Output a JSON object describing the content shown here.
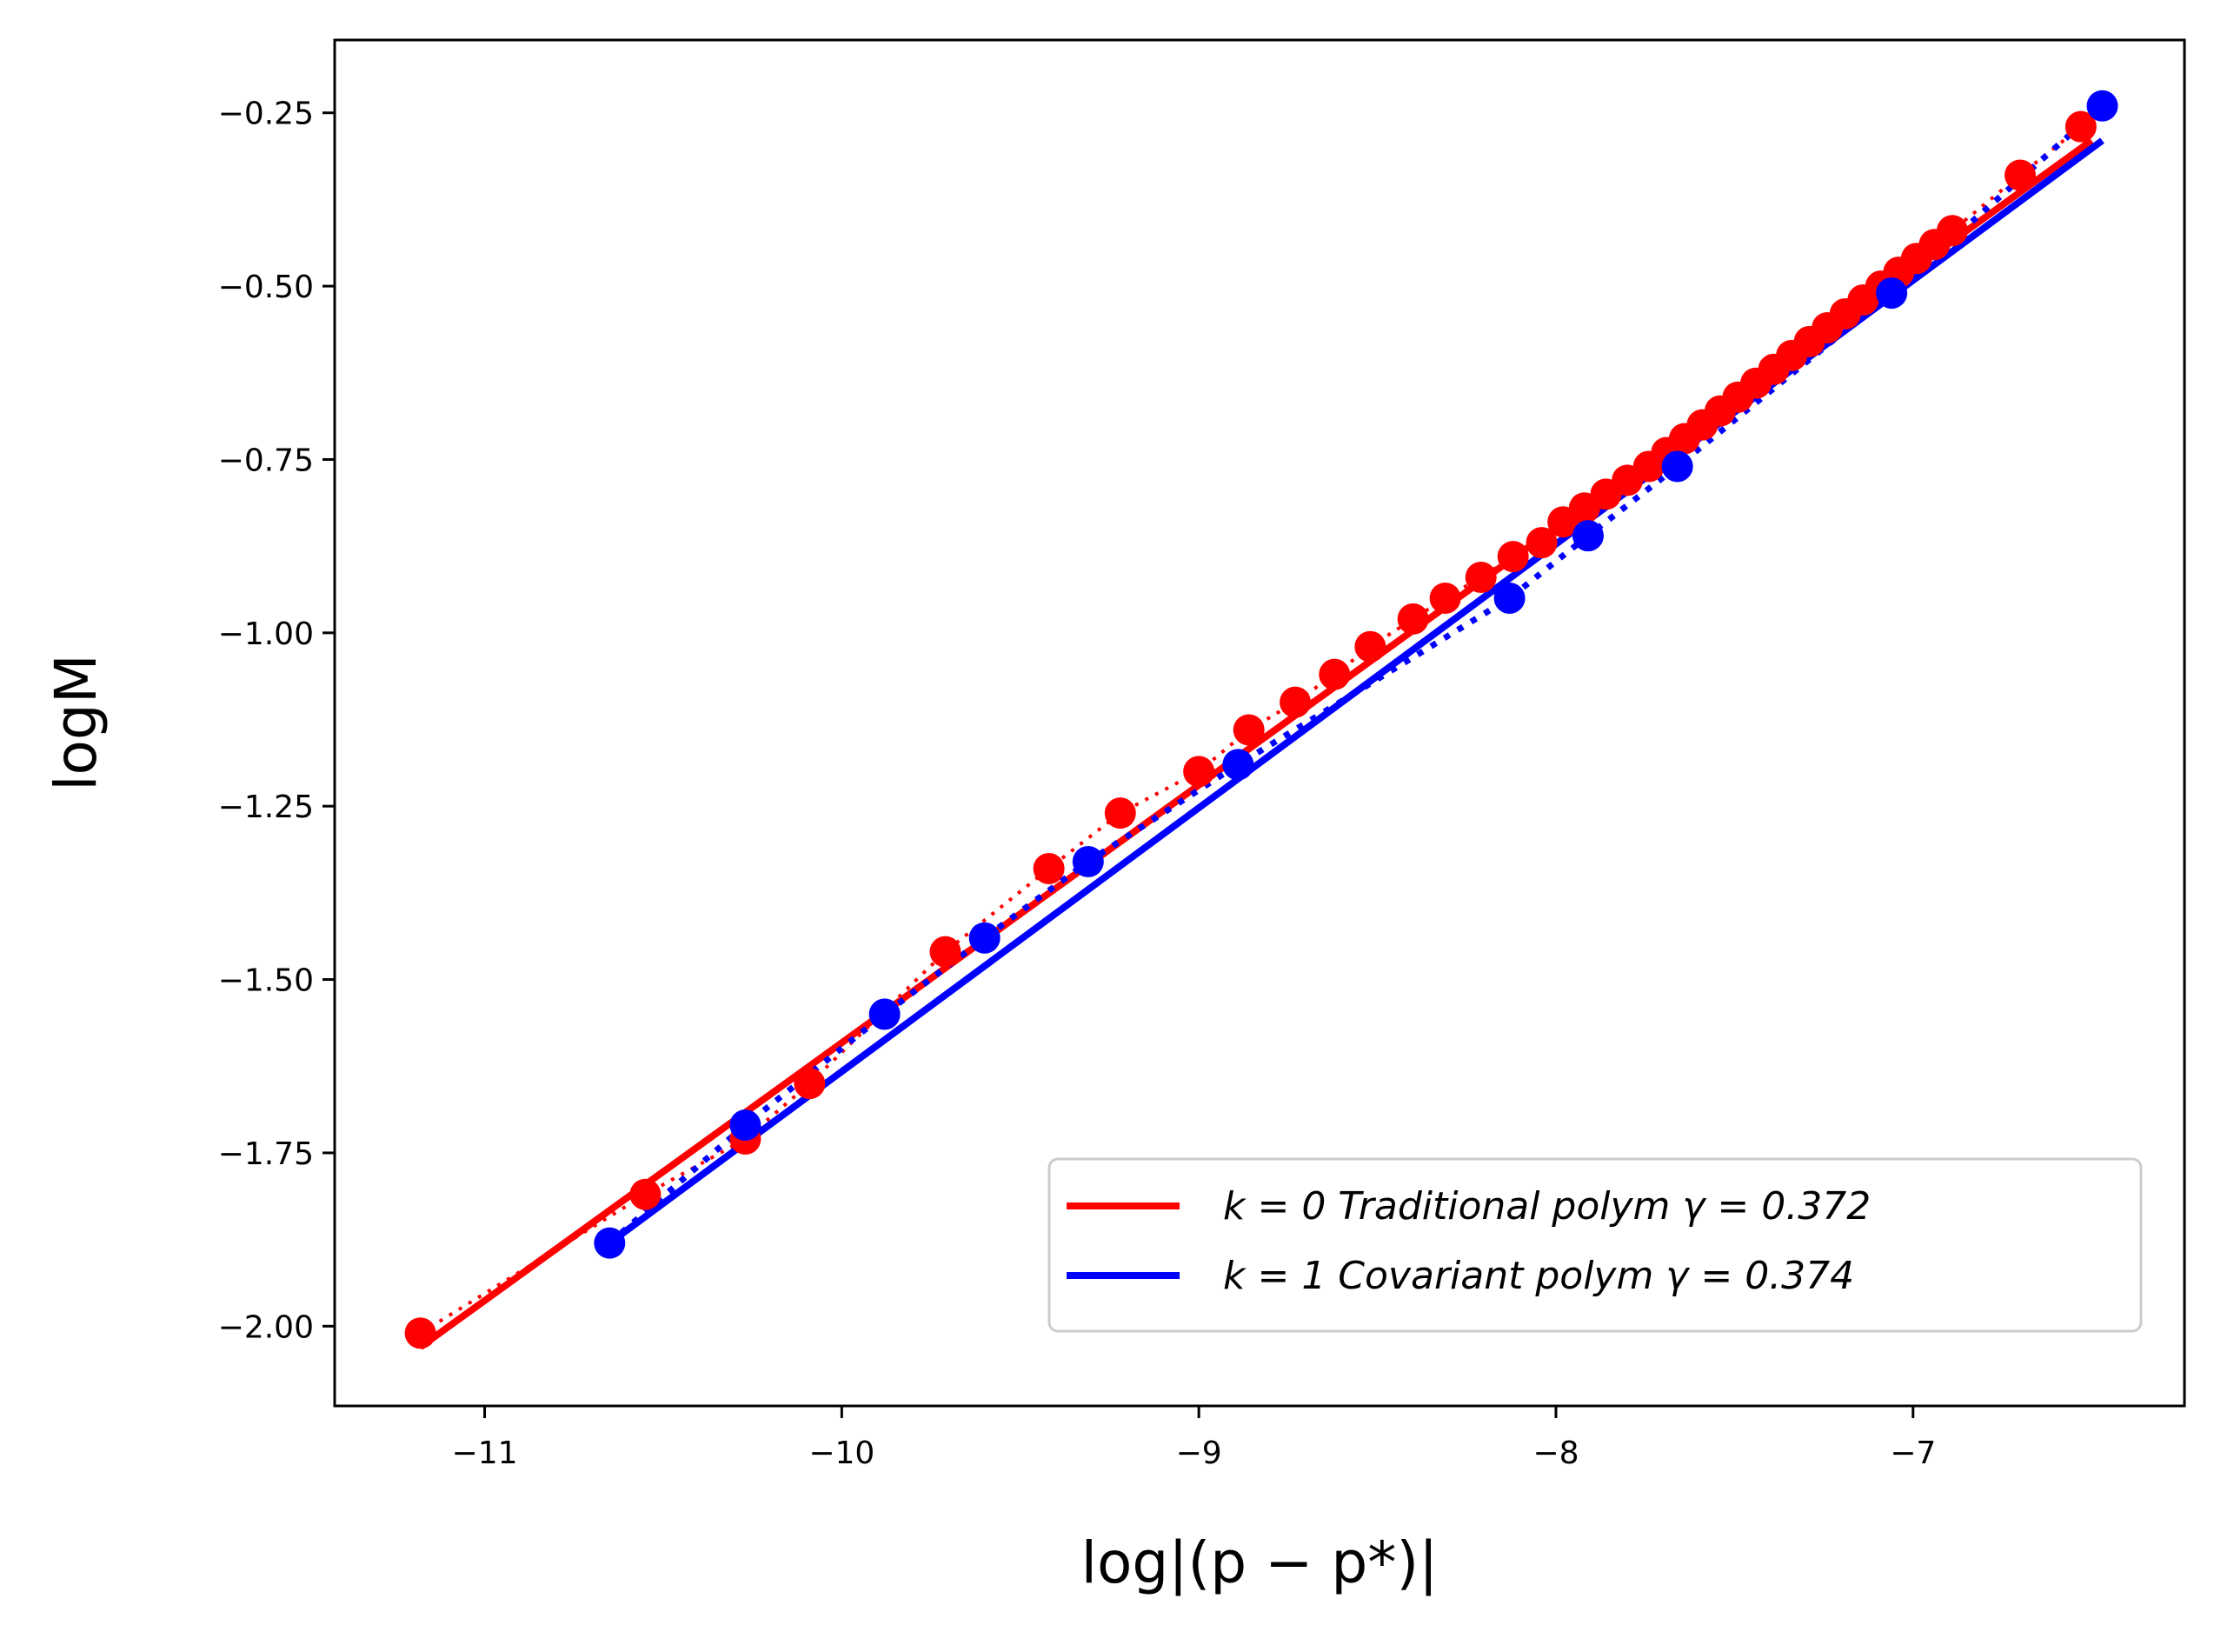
{
  "chart_data": {
    "type": "scatter",
    "title": "",
    "xlabel": "log|(p − p*)|",
    "ylabel": "logM",
    "xlim": [
      -11.42,
      -6.24
    ],
    "ylim": [
      -2.115,
      -0.145
    ],
    "grid": false,
    "legend_position": "lower-right",
    "x_ticks": [
      -11,
      -10,
      -9,
      -8,
      -7
    ],
    "x_tick_labels": [
      "−11",
      "−10",
      "−9",
      "−8",
      "−7"
    ],
    "y_ticks": [
      -0.25,
      -0.5,
      -0.75,
      -1.0,
      -1.25,
      -1.5,
      -1.75,
      -2.0
    ],
    "y_tick_labels": [
      "−0.25",
      "−0.50",
      "−0.75",
      "−1.00",
      "−1.25",
      "−1.50",
      "−1.75",
      "−2.00"
    ],
    "series": [
      {
        "name": "k = 0 Traditional polym γ = 0.372",
        "k": "0",
        "method": "Traditional polym",
        "gamma": "0.372",
        "color": "#ff0000",
        "fit": {
          "x": [
            -11.18,
            -6.5
          ],
          "y": [
            -2.03,
            -0.29
          ]
        },
        "points": [
          {
            "x": -11.18,
            "y": -2.01
          },
          {
            "x": -10.55,
            "y": -1.81
          },
          {
            "x": -10.27,
            "y": -1.73
          },
          {
            "x": -10.09,
            "y": -1.65
          },
          {
            "x": -9.71,
            "y": -1.46
          },
          {
            "x": -9.42,
            "y": -1.34
          },
          {
            "x": -9.22,
            "y": -1.26
          },
          {
            "x": -9.0,
            "y": -1.2
          },
          {
            "x": -8.86,
            "y": -1.14
          },
          {
            "x": -8.73,
            "y": -1.1
          },
          {
            "x": -8.62,
            "y": -1.06
          },
          {
            "x": -8.52,
            "y": -1.02
          },
          {
            "x": -8.4,
            "y": -0.98
          },
          {
            "x": -8.31,
            "y": -0.95
          },
          {
            "x": -8.21,
            "y": -0.92
          },
          {
            "x": -8.12,
            "y": -0.89
          },
          {
            "x": -8.04,
            "y": -0.87
          },
          {
            "x": -7.98,
            "y": -0.84
          },
          {
            "x": -7.92,
            "y": -0.82
          },
          {
            "x": -7.86,
            "y": -0.8
          },
          {
            "x": -7.8,
            "y": -0.78
          },
          {
            "x": -7.74,
            "y": -0.76
          },
          {
            "x": -7.69,
            "y": -0.74
          },
          {
            "x": -7.64,
            "y": -0.72
          },
          {
            "x": -7.59,
            "y": -0.7
          },
          {
            "x": -7.54,
            "y": -0.68
          },
          {
            "x": -7.49,
            "y": -0.66
          },
          {
            "x": -7.44,
            "y": -0.64
          },
          {
            "x": -7.39,
            "y": -0.62
          },
          {
            "x": -7.34,
            "y": -0.6
          },
          {
            "x": -7.29,
            "y": -0.58
          },
          {
            "x": -7.24,
            "y": -0.56
          },
          {
            "x": -7.19,
            "y": -0.54
          },
          {
            "x": -7.14,
            "y": -0.52
          },
          {
            "x": -7.09,
            "y": -0.5
          },
          {
            "x": -7.04,
            "y": -0.48
          },
          {
            "x": -6.99,
            "y": -0.46
          },
          {
            "x": -6.94,
            "y": -0.44
          },
          {
            "x": -6.89,
            "y": -0.42
          },
          {
            "x": -6.7,
            "y": -0.34
          },
          {
            "x": -6.53,
            "y": -0.27
          }
        ]
      },
      {
        "name": "k = 1 Covariant polym γ = 0.374",
        "k": "1",
        "method": "Covariant polym",
        "gamma": "0.374",
        "color": "#0000ff",
        "fit": {
          "x": [
            -10.65,
            -6.47
          ],
          "y": [
            -1.88,
            -0.29
          ]
        },
        "points": [
          {
            "x": -10.65,
            "y": -1.88
          },
          {
            "x": -10.27,
            "y": -1.71
          },
          {
            "x": -9.88,
            "y": -1.55
          },
          {
            "x": -9.6,
            "y": -1.44
          },
          {
            "x": -9.31,
            "y": -1.33
          },
          {
            "x": -8.89,
            "y": -1.19
          },
          {
            "x": -8.13,
            "y": -0.95
          },
          {
            "x": -7.91,
            "y": -0.86
          },
          {
            "x": -7.66,
            "y": -0.76
          },
          {
            "x": -7.06,
            "y": -0.51
          },
          {
            "x": -6.47,
            "y": -0.24
          }
        ]
      }
    ]
  }
}
